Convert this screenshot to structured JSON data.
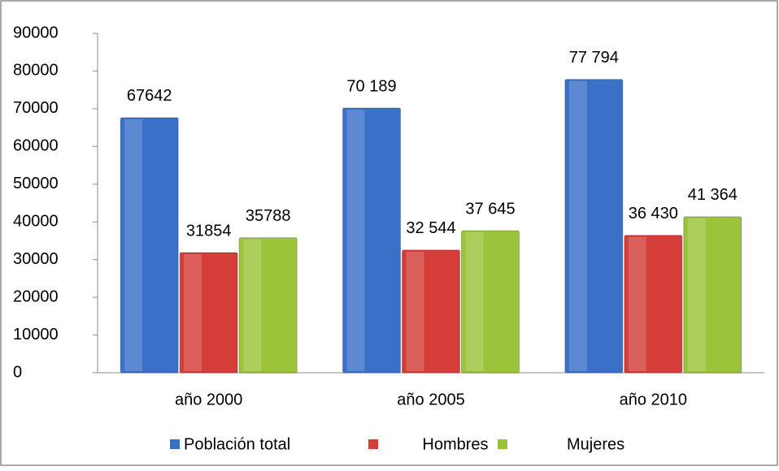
{
  "chart_data": {
    "type": "bar",
    "categories": [
      "año 2000",
      "año 2005",
      "año 2010"
    ],
    "series": [
      {
        "name": "Población total",
        "color": "#3a70c8",
        "values": [
          67642,
          70189,
          77794
        ],
        "value_labels": [
          "67642",
          "70 189",
          "77 794"
        ]
      },
      {
        "name": "Hombres",
        "color": "#d43d38",
        "values": [
          31854,
          32544,
          36430
        ],
        "value_labels": [
          "31854",
          "32 544",
          "36 430"
        ]
      },
      {
        "name": "Mujeres",
        "color": "#9cc43a",
        "values": [
          35788,
          37645,
          41364
        ],
        "value_labels": [
          "35788",
          "37 645",
          "41 364"
        ]
      }
    ],
    "ylim": [
      0,
      90000
    ],
    "yticks": [
      0,
      10000,
      20000,
      30000,
      40000,
      50000,
      60000,
      70000,
      80000,
      90000
    ],
    "legend": "bottom"
  }
}
